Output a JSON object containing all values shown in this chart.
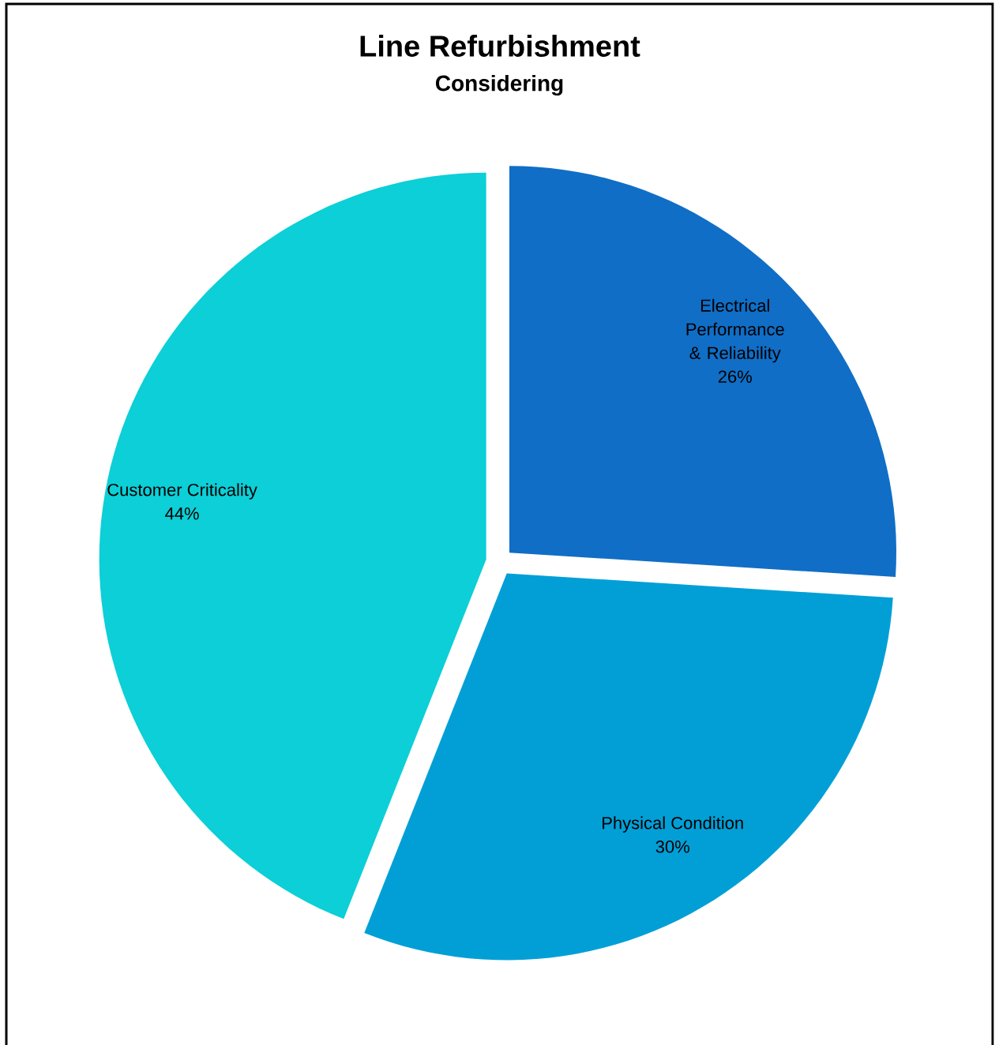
{
  "chart_data": {
    "type": "pie",
    "title": "Line Refurbishment",
    "subtitle": "Considering",
    "categories": [
      "Electrical Performance & Reliability",
      "Physical Condition",
      "Customer Criticality"
    ],
    "values": [
      26,
      30,
      44
    ],
    "value_labels": [
      "26%",
      "30%",
      "44%"
    ],
    "colors": [
      "#106ec6",
      "#029fd7",
      "#0ccfd7"
    ]
  }
}
